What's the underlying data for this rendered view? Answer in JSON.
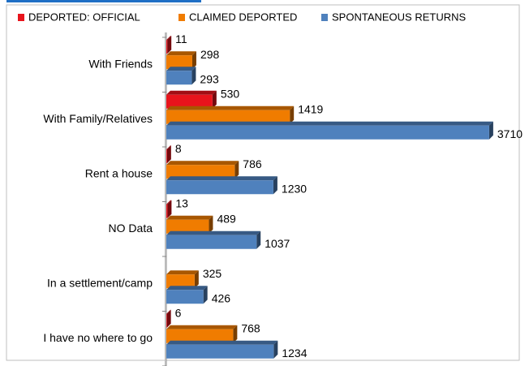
{
  "chart_data": {
    "type": "bar",
    "orientation": "horizontal",
    "categories": [
      "With Friends",
      "With Family/Relatives",
      "Rent a house",
      "NO Data",
      "In a settlement/camp",
      "I have no where to go"
    ],
    "series": [
      {
        "name": "DEPORTED: OFFICIAL",
        "color": "#e8141c",
        "values": [
          11,
          530,
          8,
          13,
          null,
          6
        ]
      },
      {
        "name": "CLAIMED DEPORTED",
        "color": "#f07c00",
        "values": [
          298,
          1419,
          786,
          489,
          325,
          768
        ]
      },
      {
        "name": "SPONTANEOUS RETURNS",
        "color": "#4f81bd",
        "values": [
          293,
          3710,
          1230,
          1037,
          426,
          1234
        ]
      }
    ],
    "xlim": [
      0,
      4000
    ],
    "legend": "top"
  }
}
